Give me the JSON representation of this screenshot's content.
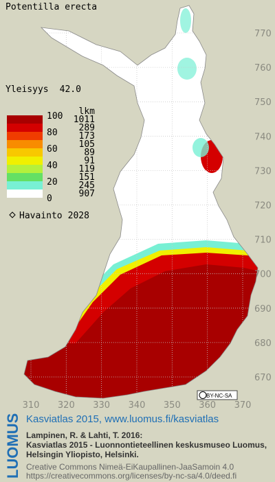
{
  "title": "Potentilla erecta",
  "frequency": {
    "label": "Yleisyys",
    "value": "42.0"
  },
  "legend": {
    "scale": [
      100,
      80,
      60,
      40,
      20,
      0
    ],
    "count_header": "lkm",
    "counts": [
      1011,
      289,
      173,
      105,
      89,
      91,
      119,
      151,
      245,
      907
    ],
    "colors": [
      "#a80000",
      "#d40000",
      "#f03c00",
      "#f88c00",
      "#f8c800",
      "#f0f000",
      "#b4f03c",
      "#64e064",
      "#78f0d4",
      "#ffffff"
    ]
  },
  "observations": {
    "label": "Havainto",
    "value": 2028
  },
  "grid": {
    "northing": [
      770,
      760,
      750,
      740,
      730,
      720,
      710,
      700,
      690,
      680,
      670
    ],
    "easting": [
      310,
      320,
      330,
      340,
      350,
      360,
      370
    ]
  },
  "license_badge": "BY-NC-SA",
  "footer": {
    "brand": "LUOMUS",
    "headline": "Kasviatlas 2015, www.luomus.fi/kasviatlas",
    "citation_1": "Lampinen, R. & Lahti, T. 2016:",
    "citation_2": "Kasviatlas 2015 - Luonnontieteellinen keskusmuseo Luomus,",
    "citation_3": "Helsingin Yliopisto, Helsinki.",
    "license_1": "Creative Commons Nimeä-EiKaupallinen-JaaSamoin 4.0",
    "license_2": "https://creativecommons.org/licenses/by-nc-sa/4.0/deed.fi"
  }
}
